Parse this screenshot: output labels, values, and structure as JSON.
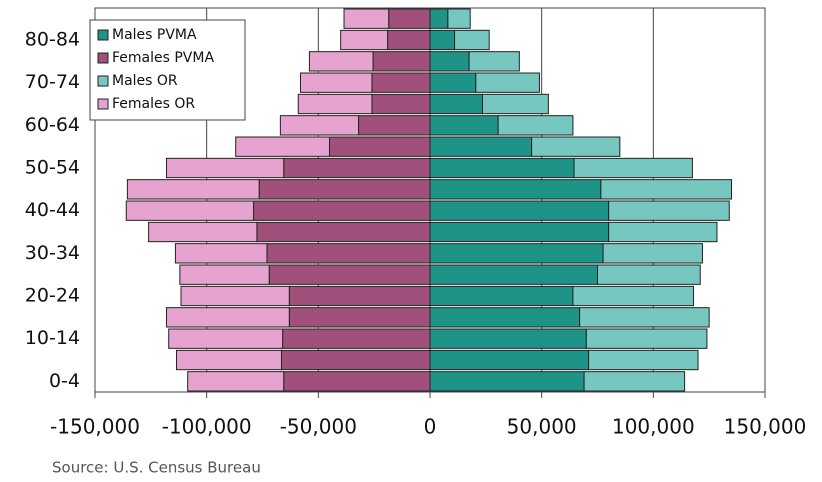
{
  "chart_data": {
    "type": "bar",
    "orientation": "horizontal",
    "stacked": true,
    "source": "Source: U.S. Census Bureau",
    "categories": [
      "0-4",
      null,
      "10-14",
      null,
      "20-24",
      null,
      "30-34",
      null,
      "40-44",
      null,
      "50-54",
      null,
      "60-64",
      null,
      "70-74",
      null,
      "80-84",
      null
    ],
    "series": [
      {
        "name": "Males PVMA",
        "color": "#1e9488",
        "values": [
          69000,
          71000,
          70000,
          67000,
          64000,
          75000,
          77500,
          80000,
          80000,
          76500,
          64500,
          45500,
          30500,
          23500,
          20500,
          17500,
          11000,
          8000
        ]
      },
      {
        "name": "Females PVMA",
        "color": "#a0507a",
        "values": [
          -65500,
          -66500,
          -66000,
          -63000,
          -63000,
          -72000,
          -73000,
          -77500,
          -79000,
          -76500,
          -65500,
          -45000,
          -32000,
          -26000,
          -26000,
          -25500,
          -19000,
          -18500
        ]
      },
      {
        "name": "Males OR",
        "color": "#76c7c0",
        "values": [
          45000,
          49000,
          54000,
          58000,
          54000,
          46000,
          44500,
          48500,
          54000,
          58500,
          53000,
          39500,
          33500,
          29500,
          28500,
          22500,
          15500,
          10000
        ]
      },
      {
        "name": "Females OR",
        "color": "#e6a3cf",
        "values": [
          -43000,
          -47000,
          -51000,
          -55000,
          -48500,
          -40000,
          -41000,
          -48500,
          -57000,
          -59000,
          -52500,
          -42000,
          -35000,
          -33000,
          -32000,
          -28500,
          -21000,
          -20000
        ]
      }
    ],
    "xlim": [
      -150000,
      150000
    ],
    "xticks": [
      {
        "value": -150000,
        "label": "-150,000"
      },
      {
        "value": -100000,
        "label": "-100,000"
      },
      {
        "value": -50000,
        "label": "-50,000"
      },
      0,
      {
        "value": 50000,
        "label": "50,000"
      },
      {
        "value": 100000,
        "label": "100,000"
      },
      {
        "value": 150000,
        "label": "150,000"
      }
    ],
    "grid": true,
    "legend": "upper left"
  }
}
